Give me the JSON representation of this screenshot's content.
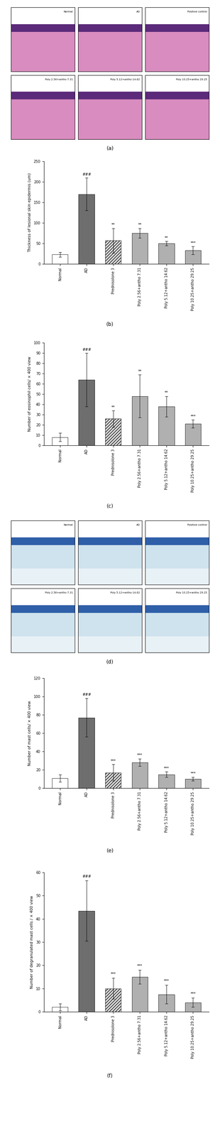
{
  "image_panels": [
    {
      "caption": "(a)",
      "labels": [
        "Normal",
        "AD",
        "Positive control",
        "Poly 2.56+antho 7.31",
        "Poly 5.12+antho 14.62",
        "Poly 10.25+antho 29.25"
      ]
    },
    {
      "caption": "(d)",
      "labels": [
        "Normal",
        "AD",
        "Positive control",
        "Poly 2.56+antho 7.31",
        "Poly 5.12+antho 14.62",
        "Poly 10.25+antho 29.25"
      ]
    }
  ],
  "chart_data": [
    {
      "type": "bar",
      "caption": "(b)",
      "ylabel": "Thickness of lesional skin epidermis (um)",
      "categories": [
        "Normal",
        "AD",
        "Prednisolone 3",
        "Poly 2.56+antho 7.31",
        "Poly 5.12+antho 14.62",
        "Poly 10.25+antho 29.25"
      ],
      "values": [
        23,
        170,
        57,
        75,
        50,
        33
      ],
      "errors": [
        6,
        40,
        30,
        12,
        5,
        10
      ],
      "significance": [
        null,
        "###",
        "**",
        "**",
        "**",
        "***"
      ],
      "colors": [
        "#ffffff",
        "#6e6e6e",
        "#d9d9d9",
        "#b0b0b0",
        "#b0b0b0",
        "#b0b0b0"
      ],
      "ylim": [
        0,
        250
      ],
      "yticks": [
        0,
        50,
        100,
        150,
        200,
        250
      ]
    },
    {
      "type": "bar",
      "caption": "(c)",
      "ylabel": "Number of eosinophil cells/ × 400 view",
      "categories": [
        "Normal",
        "AD",
        "Prednisolone 3",
        "Poly 2.56+antho 7.31",
        "Poly 5.12+antho 14.62",
        "Poly 10.25+antho 29.25"
      ],
      "values": [
        8,
        64,
        26,
        48,
        38,
        21
      ],
      "errors": [
        4,
        26,
        8,
        21,
        10,
        4
      ],
      "significance": [
        null,
        "###",
        "**",
        "**",
        "**",
        "***"
      ],
      "colors": [
        "#ffffff",
        "#6e6e6e",
        "#d9d9d9",
        "#b0b0b0",
        "#b0b0b0",
        "#b0b0b0"
      ],
      "ylim": [
        0,
        100
      ],
      "yticks": [
        0,
        10,
        20,
        30,
        40,
        50,
        60,
        70,
        80,
        90,
        100
      ]
    },
    {
      "type": "bar",
      "caption": "(e)",
      "ylabel": "Number of mast cells/ × 400 view",
      "categories": [
        "Normal",
        "AD",
        "Prednisolone 3",
        "Poly 2.56+antho 7.31",
        "Poly 5.12+antho 14.62",
        "Poly 10.25+antho 29.25"
      ],
      "values": [
        11,
        77,
        17,
        28,
        15,
        10
      ],
      "errors": [
        4,
        21,
        9,
        4,
        3,
        2
      ],
      "significance": [
        null,
        "###",
        "***",
        "***",
        "***",
        "***"
      ],
      "colors": [
        "#ffffff",
        "#6e6e6e",
        "#d9d9d9",
        "#b0b0b0",
        "#b0b0b0",
        "#b0b0b0"
      ],
      "ylim": [
        0,
        120
      ],
      "yticks": [
        0,
        20,
        40,
        60,
        80,
        100,
        120
      ]
    },
    {
      "type": "bar",
      "caption": "(f)",
      "ylabel": "Number of degranulated mast cells / × 400 view",
      "categories": [
        "Normal",
        "AD",
        "Prednisolone 3",
        "Poly 2.56+antho 7.31",
        "Poly 5.12+antho 14.62",
        "Poly 10.25+antho 29.25"
      ],
      "values": [
        2,
        43.5,
        10,
        15,
        7.5,
        4
      ],
      "errors": [
        1.5,
        13,
        4.5,
        3,
        4,
        2
      ],
      "significance": [
        null,
        "###",
        "***",
        "***",
        "***",
        "***"
      ],
      "colors": [
        "#ffffff",
        "#6e6e6e",
        "#d9d9d9",
        "#b0b0b0",
        "#b0b0b0",
        "#b0b0b0"
      ],
      "ylim": [
        0,
        60
      ],
      "yticks": [
        0,
        10,
        20,
        30,
        40,
        50,
        60
      ]
    }
  ]
}
